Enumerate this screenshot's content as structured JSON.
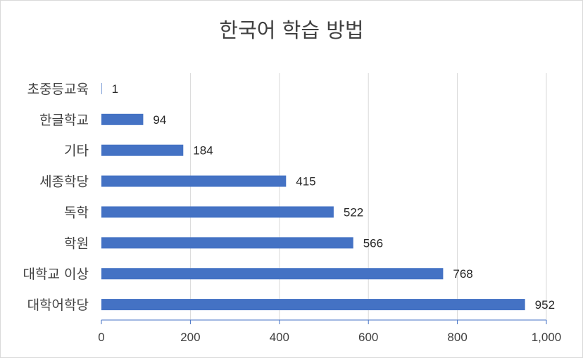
{
  "chart_data": {
    "type": "bar",
    "orientation": "horizontal",
    "title": "한국어 학습 방법",
    "categories": [
      "초중등교육",
      "한글학교",
      "기타",
      "세종학당",
      "독학",
      "학원",
      "대학교 이상",
      "대학어학당"
    ],
    "values": [
      1,
      94,
      184,
      415,
      522,
      566,
      768,
      952
    ],
    "xlim": [
      0,
      1000
    ],
    "xticks": [
      0,
      200,
      400,
      600,
      800,
      1000
    ],
    "xtick_labels": [
      "0",
      "200",
      "400",
      "600",
      "800",
      "1,000"
    ],
    "xlabel": "",
    "ylabel": "",
    "grid": true,
    "legend": "none",
    "data_labels": true,
    "bar_color": "#4472c4",
    "grid_color": "#d9d9d9",
    "axis_color": "#4472c4"
  }
}
